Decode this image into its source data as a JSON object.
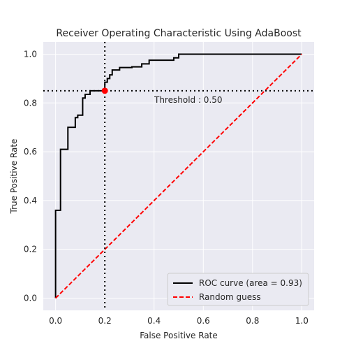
{
  "chart_data": {
    "type": "line",
    "title": "Receiver Operating Characteristic Using AdaBoost",
    "xlabel": "False Positive Rate",
    "ylabel": "True Positive Rate",
    "xlim": [
      -0.05,
      1.05
    ],
    "ylim": [
      -0.05,
      1.05
    ],
    "xticks": [
      0.0,
      0.2,
      0.4,
      0.6,
      0.8,
      1.0
    ],
    "yticks": [
      0.0,
      0.2,
      0.4,
      0.6,
      0.8,
      1.0
    ],
    "xtick_labels": [
      "0.0",
      "0.2",
      "0.4",
      "0.6",
      "0.8",
      "1.0"
    ],
    "ytick_labels": [
      "0.0",
      "0.2",
      "0.4",
      "0.6",
      "0.8",
      "1.0"
    ],
    "grid": true,
    "legend_position": "lower-right",
    "series": [
      {
        "name": "ROC curve (area = 0.93)",
        "color": "#000000",
        "style": "solid",
        "points": [
          [
            0.0,
            0.0
          ],
          [
            0.0,
            0.36
          ],
          [
            0.02,
            0.36
          ],
          [
            0.02,
            0.61
          ],
          [
            0.05,
            0.61
          ],
          [
            0.05,
            0.7
          ],
          [
            0.08,
            0.7
          ],
          [
            0.08,
            0.74
          ],
          [
            0.09,
            0.74
          ],
          [
            0.09,
            0.75
          ],
          [
            0.11,
            0.75
          ],
          [
            0.11,
            0.82
          ],
          [
            0.12,
            0.82
          ],
          [
            0.12,
            0.835
          ],
          [
            0.14,
            0.835
          ],
          [
            0.14,
            0.85
          ],
          [
            0.2,
            0.85
          ],
          [
            0.2,
            0.885
          ],
          [
            0.21,
            0.885
          ],
          [
            0.21,
            0.9
          ],
          [
            0.22,
            0.9
          ],
          [
            0.22,
            0.915
          ],
          [
            0.23,
            0.915
          ],
          [
            0.23,
            0.935
          ],
          [
            0.26,
            0.935
          ],
          [
            0.26,
            0.945
          ],
          [
            0.31,
            0.945
          ],
          [
            0.31,
            0.948
          ],
          [
            0.35,
            0.948
          ],
          [
            0.35,
            0.96
          ],
          [
            0.38,
            0.96
          ],
          [
            0.38,
            0.975
          ],
          [
            0.48,
            0.975
          ],
          [
            0.48,
            0.985
          ],
          [
            0.5,
            0.985
          ],
          [
            0.5,
            1.0
          ],
          [
            1.0,
            1.0
          ]
        ]
      },
      {
        "name": "Random guess",
        "color": "#ff0000",
        "style": "dashed",
        "points": [
          [
            0.0,
            0.0
          ],
          [
            1.0,
            1.0
          ]
        ]
      }
    ],
    "threshold": {
      "x": 0.2,
      "y": 0.85,
      "label": "Threshold : 0.50",
      "marker_color": "#ff0000"
    }
  }
}
